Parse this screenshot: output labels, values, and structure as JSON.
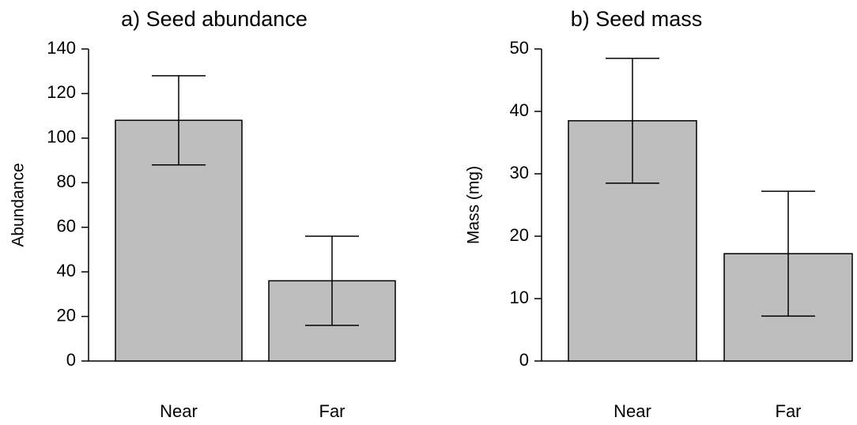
{
  "chart_data": [
    {
      "type": "bar",
      "title": "a) Seed abundance",
      "y_label": "Abundance",
      "categories": [
        "Near",
        "Far"
      ],
      "values": [
        108,
        36
      ],
      "errors": [
        20,
        20
      ],
      "color": "#bebebe",
      "ylim": [
        0,
        140
      ],
      "yticks": [
        0,
        20,
        40,
        60,
        80,
        100,
        120,
        140
      ]
    },
    {
      "type": "bar",
      "title": "b) Seed mass",
      "y_label": "Mass (mg)",
      "categories": [
        "Near",
        "Far"
      ],
      "values": [
        38.5,
        17.2
      ],
      "errors": [
        10,
        10
      ],
      "color": "#bebebe",
      "ylim": [
        0,
        50
      ],
      "yticks": [
        0,
        10,
        20,
        30,
        40,
        50
      ]
    }
  ]
}
